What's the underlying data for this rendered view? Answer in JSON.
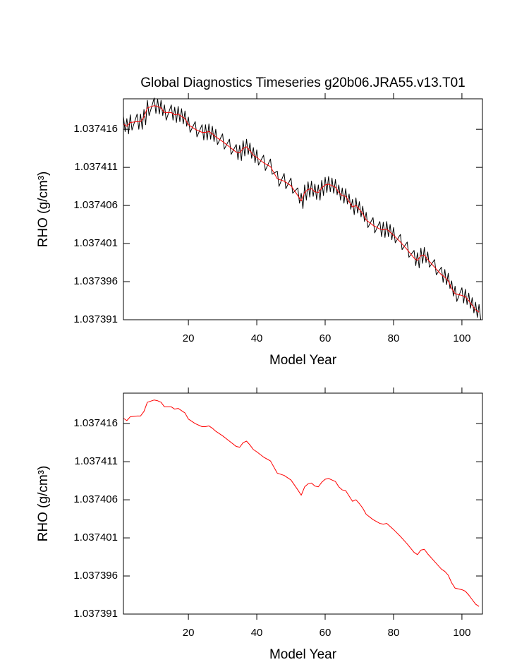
{
  "chart_data": [
    {
      "type": "line",
      "title": "Global Diagnostics Timeseries g20b06.JRA55.v13.T01",
      "xlabel": "Model Year",
      "ylabel": "RHO (g/cm³)",
      "xlim": [
        1,
        106
      ],
      "ylim": [
        1.037391,
        1.03742
      ],
      "xticks": [
        20,
        40,
        60,
        80,
        100
      ],
      "yticks": [
        1.037391,
        1.037396,
        1.037401,
        1.037406,
        1.037411,
        1.037416
      ],
      "series": [
        {
          "color": "#000000",
          "x": [
            1,
            1.5,
            2,
            2.5,
            3,
            3.5,
            5,
            5.5,
            6,
            6.5,
            7,
            7.5,
            8,
            8.5,
            10,
            10.5,
            11,
            11.5,
            12,
            12.5,
            13,
            13.5,
            15,
            15.5,
            16,
            16.5,
            17,
            17.5,
            18,
            18.5,
            19,
            19.5,
            20,
            20.5,
            22,
            22.5,
            24,
            24.5,
            25,
            25.5,
            26,
            26.5,
            27,
            27.5,
            28,
            28.5,
            30,
            30.5,
            32,
            32.5,
            34,
            34.5,
            35,
            35.5,
            36,
            36.5,
            37,
            37.5,
            38,
            38.5,
            39,
            39.5,
            40,
            40.5,
            42,
            42.5,
            44,
            44.5,
            46,
            46.5,
            48,
            48.5,
            50,
            50.5,
            52,
            52.5,
            53,
            53.5,
            54,
            54.5,
            55,
            55.5,
            56,
            56.5,
            57,
            57.5,
            58,
            58.5,
            59,
            59.5,
            60,
            60.5,
            61,
            61.5,
            62,
            62.5,
            63,
            63.5,
            64,
            64.5,
            65,
            65.5,
            66,
            66.5,
            67,
            67.5,
            68,
            68.5,
            69,
            69.5,
            70,
            70.5,
            71,
            71.5,
            72,
            72.5,
            74,
            74.5,
            76,
            76.5,
            77,
            77.5,
            78,
            78.5,
            79,
            79.5,
            80,
            80.5,
            82,
            82.5,
            84,
            84.5,
            86,
            86.5,
            87,
            87.5,
            88,
            88.5,
            89,
            89.5,
            90,
            90.5,
            92,
            92.5,
            94,
            94.5,
            95,
            95.5,
            96,
            96.5,
            97,
            97.5,
            98,
            98.5,
            100,
            100.5,
            101,
            101.5,
            102,
            102.5,
            103,
            103.5,
            104,
            104.5,
            105,
            105.5
          ],
          "values": [
            1.0374177,
            1.0374157,
            1.0374174,
            1.0374154,
            1.0374179,
            1.0374159,
            1.037418,
            1.037416,
            1.037418,
            1.037416,
            1.0374186,
            1.0374166,
            1.0374198,
            1.0374178,
            1.0374201,
            1.0374181,
            1.03742,
            1.037418,
            1.0374198,
            1.0374178,
            1.0374192,
            1.0374172,
            1.0374192,
            1.0374172,
            1.0374189,
            1.0374169,
            1.037419,
            1.037417,
            1.0374187,
            1.0374167,
            1.0374184,
            1.0374164,
            1.0374176,
            1.0374156,
            1.037417,
            1.037415,
            1.0374166,
            1.0374146,
            1.0374166,
            1.0374146,
            1.0374167,
            1.0374147,
            1.0374164,
            1.0374144,
            1.037416,
            1.037414,
            1.0374154,
            1.0374134,
            1.0374147,
            1.0374127,
            1.037414,
            1.037412,
            1.0374139,
            1.0374119,
            1.0374145,
            1.0374125,
            1.0374147,
            1.0374127,
            1.0374142,
            1.0374122,
            1.0374136,
            1.0374116,
            1.0374133,
            1.0374113,
            1.0374126,
            1.0374106,
            1.0374121,
            1.0374101,
            1.0374105,
            1.0374085,
            1.0374102,
            1.0374082,
            1.0374096,
            1.0374076,
            1.0374083,
            1.0374063,
            1.0374076,
            1.0374056,
            1.0374087,
            1.0374067,
            1.0374091,
            1.0374071,
            1.0374092,
            1.0374072,
            1.0374088,
            1.0374068,
            1.0374087,
            1.0374067,
            1.0374093,
            1.0374073,
            1.0374097,
            1.0374077,
            1.0374098,
            1.0374078,
            1.0374096,
            1.0374076,
            1.0374094,
            1.0374074,
            1.0374087,
            1.0374067,
            1.0374083,
            1.0374063,
            1.0374082,
            1.0374062,
            1.0374075,
            1.0374055,
            1.0374068,
            1.0374048,
            1.037407,
            1.037405,
            1.0374065,
            1.0374045,
            1.0374059,
            1.0374039,
            1.0374051,
            1.0374031,
            1.0374044,
            1.0374024,
            1.0374039,
            1.0374019,
            1.0374038,
            1.0374018,
            1.0374039,
            1.0374019,
            1.0374035,
            1.0374015,
            1.0374031,
            1.0374011,
            1.0374022,
            1.0374002,
            1.0374012,
            1.0373992,
            1.0374001,
            1.0373981,
            1.0373998,
            1.0373978,
            1.0374004,
            1.0373984,
            1.0374005,
            1.0373985,
            1.0373999,
            1.0373979,
            1.0373989,
            1.0373969,
            1.0373979,
            1.0373959,
            1.0373976,
            1.0373956,
            1.0373971,
            1.0373951,
            1.0373961,
            1.0373941,
            1.0373954,
            1.0373934,
            1.0373952,
            1.0373932,
            1.037395,
            1.037393,
            1.0373945,
            1.0373925,
            1.0373939,
            1.0373919,
            1.0373933,
            1.0373913,
            1.037393,
            1.037391
          ]
        },
        {
          "color": "#ff0000",
          "x": [
            1,
            2,
            3,
            5,
            6,
            7,
            8,
            10,
            11,
            12,
            13,
            15,
            16,
            17,
            18,
            19,
            20,
            22,
            24,
            25,
            26,
            27,
            28,
            30,
            32,
            34,
            35,
            36,
            37,
            38,
            39,
            40,
            42,
            44,
            46,
            48,
            50,
            52,
            53,
            54,
            55,
            56,
            57,
            58,
            59,
            60,
            61,
            62,
            63,
            64,
            65,
            66,
            67,
            68,
            69,
            70,
            71,
            72,
            74,
            76,
            77,
            78,
            79,
            80,
            82,
            84,
            86,
            87,
            88,
            89,
            90,
            92,
            94,
            95,
            96,
            97,
            98,
            100,
            101,
            102,
            103,
            104,
            105
          ],
          "values": [
            1.0374167,
            1.0374164,
            1.0374169,
            1.037417,
            1.037417,
            1.0374176,
            1.0374188,
            1.0374191,
            1.037419,
            1.0374188,
            1.0374182,
            1.0374182,
            1.0374179,
            1.037418,
            1.0374177,
            1.0374174,
            1.0374166,
            1.037416,
            1.0374156,
            1.0374156,
            1.0374157,
            1.0374154,
            1.037415,
            1.0374144,
            1.0374137,
            1.037413,
            1.0374129,
            1.0374135,
            1.0374137,
            1.0374132,
            1.0374126,
            1.0374123,
            1.0374116,
            1.0374111,
            1.0374095,
            1.0374092,
            1.0374086,
            1.0374073,
            1.0374066,
            1.0374077,
            1.0374081,
            1.0374082,
            1.0374078,
            1.0374077,
            1.0374083,
            1.0374087,
            1.0374088,
            1.0374086,
            1.0374084,
            1.0374077,
            1.0374073,
            1.0374072,
            1.0374065,
            1.0374058,
            1.037406,
            1.0374055,
            1.0374049,
            1.0374041,
            1.0374034,
            1.0374029,
            1.0374028,
            1.0374029,
            1.0374025,
            1.0374021,
            1.0374012,
            1.0374002,
            1.0373991,
            1.0373988,
            1.0373994,
            1.0373995,
            1.0373989,
            1.0373979,
            1.0373969,
            1.0373966,
            1.0373961,
            1.0373951,
            1.0373944,
            1.0373942,
            1.037394,
            1.0373935,
            1.0373929,
            1.0373923,
            1.037392
          ]
        }
      ]
    },
    {
      "type": "line",
      "xlabel": "Model Year",
      "ylabel": "RHO (g/cm³)",
      "xlim": [
        1,
        106
      ],
      "ylim": [
        1.037391,
        1.03742
      ],
      "xticks": [
        20,
        40,
        60,
        80,
        100
      ],
      "yticks": [
        1.037391,
        1.037396,
        1.037401,
        1.037406,
        1.037411,
        1.037416
      ],
      "series": [
        {
          "color": "#ff0000",
          "x": [
            1,
            2,
            3,
            5,
            6,
            7,
            8,
            10,
            11,
            12,
            13,
            15,
            16,
            17,
            18,
            19,
            20,
            22,
            24,
            25,
            26,
            27,
            28,
            30,
            32,
            34,
            35,
            36,
            37,
            38,
            39,
            40,
            42,
            44,
            46,
            48,
            50,
            52,
            53,
            54,
            55,
            56,
            57,
            58,
            59,
            60,
            61,
            62,
            63,
            64,
            65,
            66,
            67,
            68,
            69,
            70,
            71,
            72,
            74,
            76,
            77,
            78,
            79,
            80,
            82,
            84,
            86,
            87,
            88,
            89,
            90,
            92,
            94,
            95,
            96,
            97,
            98,
            100,
            101,
            102,
            103,
            104,
            105
          ],
          "values": [
            1.0374167,
            1.0374164,
            1.0374169,
            1.037417,
            1.037417,
            1.0374176,
            1.0374188,
            1.0374191,
            1.037419,
            1.0374188,
            1.0374182,
            1.0374182,
            1.0374179,
            1.037418,
            1.0374177,
            1.0374174,
            1.0374166,
            1.037416,
            1.0374156,
            1.0374156,
            1.0374157,
            1.0374154,
            1.037415,
            1.0374144,
            1.0374137,
            1.037413,
            1.0374129,
            1.0374135,
            1.0374137,
            1.0374132,
            1.0374126,
            1.0374123,
            1.0374116,
            1.0374111,
            1.0374095,
            1.0374092,
            1.0374086,
            1.0374073,
            1.0374066,
            1.0374077,
            1.0374081,
            1.0374082,
            1.0374078,
            1.0374077,
            1.0374083,
            1.0374087,
            1.0374088,
            1.0374086,
            1.0374084,
            1.0374077,
            1.0374073,
            1.0374072,
            1.0374065,
            1.0374058,
            1.037406,
            1.0374055,
            1.0374049,
            1.0374041,
            1.0374034,
            1.0374029,
            1.0374028,
            1.0374029,
            1.0374025,
            1.0374021,
            1.0374012,
            1.0374002,
            1.0373991,
            1.0373988,
            1.0373994,
            1.0373995,
            1.0373989,
            1.0373979,
            1.0373969,
            1.0373966,
            1.0373961,
            1.0373951,
            1.0373944,
            1.0373942,
            1.037394,
            1.0373935,
            1.0373929,
            1.0373923,
            1.037392
          ]
        }
      ]
    }
  ]
}
